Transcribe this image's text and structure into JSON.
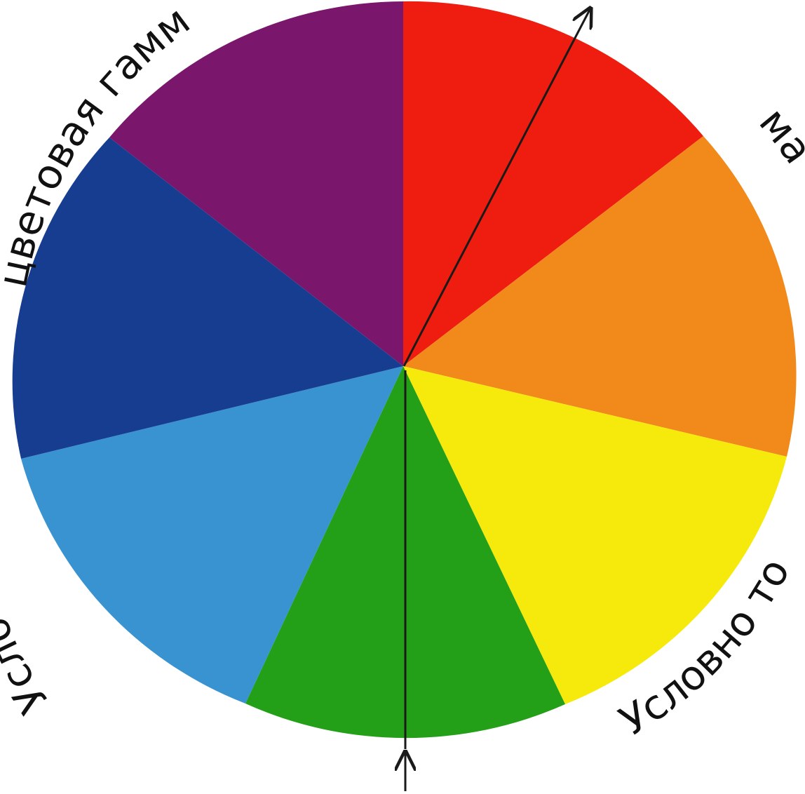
{
  "wheel": {
    "sectors": [
      {
        "name": "sector-purple",
        "color": "#7a176c"
      },
      {
        "name": "sector-red",
        "color": "#ee1d0f"
      },
      {
        "name": "sector-orange",
        "color": "#f18a1b"
      },
      {
        "name": "sector-yellow",
        "color": "#f5ea0b"
      },
      {
        "name": "sector-green",
        "color": "#24a018"
      },
      {
        "name": "sector-light-blue",
        "color": "#3893d0"
      },
      {
        "name": "sector-dark-blue",
        "color": "#173d91"
      }
    ],
    "divider_color": "#1a1a1a"
  },
  "labels": {
    "top_left": "цветовая гамм",
    "top_right": "ма",
    "bottom_right": "Условно то",
    "left": "Усло"
  }
}
